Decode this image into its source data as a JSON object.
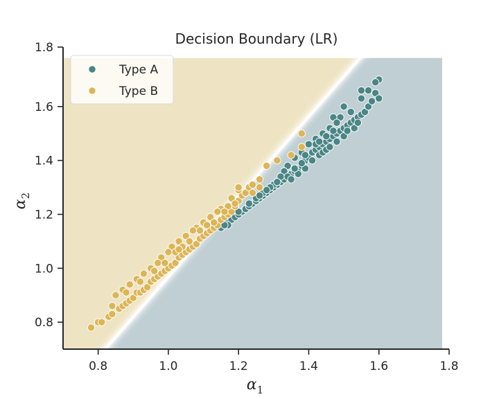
{
  "chart_data": {
    "type": "scatter",
    "title": "Decision Boundary (LR)",
    "xlabel": {
      "symbol": "α",
      "subscript": "1"
    },
    "ylabel": {
      "symbol": "α",
      "subscript": "2"
    },
    "xlim": [
      0.7,
      1.8
    ],
    "ylim": [
      0.7,
      1.8
    ],
    "xticks": [
      0.8,
      1.0,
      1.2,
      1.4,
      1.6,
      1.8
    ],
    "yticks": [
      0.8,
      1.0,
      1.2,
      1.4,
      1.6,
      1.8
    ],
    "xtick_labels": [
      "0.8",
      "1.0",
      "1.2",
      "1.4",
      "1.6",
      "1.8"
    ],
    "ytick_labels": [
      "0.8",
      "1.0",
      "1.2",
      "1.4",
      "1.6",
      "1.8"
    ],
    "grid": false,
    "legend_position": "top-left",
    "decision_regions": {
      "boundary_line": {
        "p1": [
          0.82,
          0.7
        ],
        "p2": [
          1.56,
          1.8
        ]
      },
      "upper_left_class": "Type B",
      "lower_right_class": "Type A",
      "upper_left_color": "#eee4c3",
      "lower_right_color": "#bfcfd3",
      "region_extent_x": [
        0.7,
        1.78
      ],
      "region_extent_y": [
        0.7,
        1.78
      ]
    },
    "series": [
      {
        "name": "Type A",
        "color": "#4b8586",
        "points": [
          [
            1.15,
            1.15
          ],
          [
            1.17,
            1.17
          ],
          [
            1.18,
            1.18
          ],
          [
            1.19,
            1.19
          ],
          [
            1.2,
            1.2
          ],
          [
            1.21,
            1.21
          ],
          [
            1.22,
            1.22
          ],
          [
            1.23,
            1.23
          ],
          [
            1.24,
            1.24
          ],
          [
            1.25,
            1.25
          ],
          [
            1.26,
            1.26
          ],
          [
            1.27,
            1.27
          ],
          [
            1.28,
            1.28
          ],
          [
            1.29,
            1.29
          ],
          [
            1.3,
            1.3
          ],
          [
            1.31,
            1.31
          ],
          [
            1.32,
            1.32
          ],
          [
            1.33,
            1.33
          ],
          [
            1.34,
            1.34
          ],
          [
            1.35,
            1.35
          ],
          [
            1.36,
            1.36
          ],
          [
            1.37,
            1.37
          ],
          [
            1.38,
            1.38
          ],
          [
            1.39,
            1.4
          ],
          [
            1.4,
            1.41
          ],
          [
            1.41,
            1.43
          ],
          [
            1.42,
            1.44
          ],
          [
            1.43,
            1.45
          ],
          [
            1.44,
            1.46
          ],
          [
            1.45,
            1.47
          ],
          [
            1.46,
            1.48
          ],
          [
            1.47,
            1.49
          ],
          [
            1.48,
            1.5
          ],
          [
            1.49,
            1.51
          ],
          [
            1.5,
            1.52
          ],
          [
            1.51,
            1.53
          ],
          [
            1.52,
            1.54
          ],
          [
            1.53,
            1.55
          ],
          [
            1.54,
            1.56
          ],
          [
            1.55,
            1.57
          ],
          [
            1.56,
            1.58
          ],
          [
            1.57,
            1.6
          ],
          [
            1.58,
            1.62
          ],
          [
            1.59,
            1.65
          ],
          [
            1.6,
            1.7
          ],
          [
            1.59,
            1.69
          ],
          [
            1.55,
            1.66
          ],
          [
            1.57,
            1.66
          ],
          [
            1.6,
            1.63
          ],
          [
            1.55,
            1.63
          ],
          [
            1.5,
            1.6
          ],
          [
            1.49,
            1.56
          ],
          [
            1.47,
            1.56
          ],
          [
            1.52,
            1.58
          ],
          [
            1.48,
            1.54
          ],
          [
            1.46,
            1.52
          ],
          [
            1.44,
            1.5
          ],
          [
            1.42,
            1.48
          ],
          [
            1.4,
            1.46
          ],
          [
            1.38,
            1.43
          ],
          [
            1.36,
            1.41
          ],
          [
            1.34,
            1.38
          ],
          [
            1.33,
            1.36
          ],
          [
            1.32,
            1.34
          ],
          [
            1.3,
            1.31
          ],
          [
            1.29,
            1.3
          ],
          [
            1.27,
            1.28
          ],
          [
            1.25,
            1.26
          ],
          [
            1.23,
            1.24
          ],
          [
            1.2,
            1.21
          ],
          [
            1.17,
            1.16
          ],
          [
            1.16,
            1.16
          ],
          [
            1.34,
            1.34
          ],
          [
            1.35,
            1.33
          ],
          [
            1.37,
            1.35
          ],
          [
            1.39,
            1.37
          ],
          [
            1.41,
            1.4
          ],
          [
            1.43,
            1.42
          ],
          [
            1.44,
            1.43
          ],
          [
            1.45,
            1.44
          ],
          [
            1.46,
            1.45
          ],
          [
            1.48,
            1.47
          ],
          [
            1.5,
            1.49
          ],
          [
            1.51,
            1.51
          ],
          [
            1.53,
            1.52
          ],
          [
            1.54,
            1.54
          ],
          [
            1.39,
            1.42
          ],
          [
            1.42,
            1.46
          ],
          [
            1.45,
            1.49
          ],
          [
            1.47,
            1.51
          ],
          [
            1.43,
            1.47
          ],
          [
            1.38,
            1.39
          ],
          [
            1.36,
            1.37
          ],
          [
            1.31,
            1.32
          ],
          [
            1.28,
            1.29
          ],
          [
            1.26,
            1.27
          ]
        ]
      },
      {
        "name": "Type B",
        "color": "#dcb557",
        "points": [
          [
            0.78,
            0.78
          ],
          [
            0.8,
            0.8
          ],
          [
            0.81,
            0.8
          ],
          [
            0.83,
            0.82
          ],
          [
            0.84,
            0.83
          ],
          [
            0.86,
            0.85
          ],
          [
            0.87,
            0.86
          ],
          [
            0.88,
            0.87
          ],
          [
            0.89,
            0.88
          ],
          [
            0.9,
            0.89
          ],
          [
            0.91,
            0.91
          ],
          [
            0.92,
            0.91
          ],
          [
            0.93,
            0.92
          ],
          [
            0.94,
            0.93
          ],
          [
            0.95,
            0.95
          ],
          [
            0.96,
            0.96
          ],
          [
            0.97,
            0.97
          ],
          [
            0.98,
            0.98
          ],
          [
            0.99,
            0.99
          ],
          [
            1.0,
            1.0
          ],
          [
            1.01,
            1.01
          ],
          [
            1.02,
            1.02
          ],
          [
            1.03,
            1.04
          ],
          [
            1.04,
            1.05
          ],
          [
            1.05,
            1.06
          ],
          [
            1.06,
            1.07
          ],
          [
            1.07,
            1.08
          ],
          [
            1.08,
            1.09
          ],
          [
            1.09,
            1.11
          ],
          [
            1.1,
            1.12
          ],
          [
            1.11,
            1.13
          ],
          [
            1.12,
            1.14
          ],
          [
            1.13,
            1.15
          ],
          [
            1.14,
            1.16
          ],
          [
            1.15,
            1.18
          ],
          [
            1.16,
            1.19
          ],
          [
            1.17,
            1.2
          ],
          [
            1.18,
            1.21
          ],
          [
            1.19,
            1.23
          ],
          [
            1.2,
            1.25
          ],
          [
            1.21,
            1.27
          ],
          [
            1.22,
            1.28
          ],
          [
            1.23,
            1.3
          ],
          [
            1.24,
            1.31
          ],
          [
            1.26,
            1.33
          ],
          [
            1.28,
            1.38
          ],
          [
            1.31,
            1.4
          ],
          [
            1.35,
            1.42
          ],
          [
            1.38,
            1.45
          ],
          [
            1.38,
            1.5
          ],
          [
            1.2,
            1.29
          ],
          [
            1.2,
            1.3
          ],
          [
            1.18,
            1.26
          ],
          [
            1.17,
            1.23
          ],
          [
            1.15,
            1.22
          ],
          [
            1.14,
            1.21
          ],
          [
            1.12,
            1.19
          ],
          [
            1.1,
            1.17
          ],
          [
            1.08,
            1.15
          ],
          [
            1.07,
            1.14
          ],
          [
            1.05,
            1.12
          ],
          [
            1.03,
            1.1
          ],
          [
            1.01,
            1.08
          ],
          [
            1.0,
            1.06
          ],
          [
            0.98,
            1.04
          ],
          [
            0.97,
            1.02
          ],
          [
            0.95,
            1.0
          ],
          [
            0.93,
            0.98
          ],
          [
            0.91,
            0.96
          ],
          [
            0.89,
            0.94
          ],
          [
            0.87,
            0.92
          ],
          [
            0.85,
            0.9
          ],
          [
            1.13,
            1.17
          ],
          [
            1.11,
            1.16
          ],
          [
            1.09,
            1.14
          ],
          [
            1.06,
            1.1
          ],
          [
            1.04,
            1.08
          ],
          [
            1.02,
            1.06
          ],
          [
            0.99,
            1.02
          ],
          [
            0.96,
            0.99
          ],
          [
            0.92,
            0.95
          ],
          [
            0.88,
            0.91
          ],
          [
            0.84,
            0.86
          ],
          [
            1.16,
            1.21
          ],
          [
            1.19,
            1.24
          ],
          [
            1.24,
            1.28
          ],
          [
            1.26,
            1.3
          ],
          [
            1.03,
            1.07
          ]
        ]
      }
    ]
  }
}
